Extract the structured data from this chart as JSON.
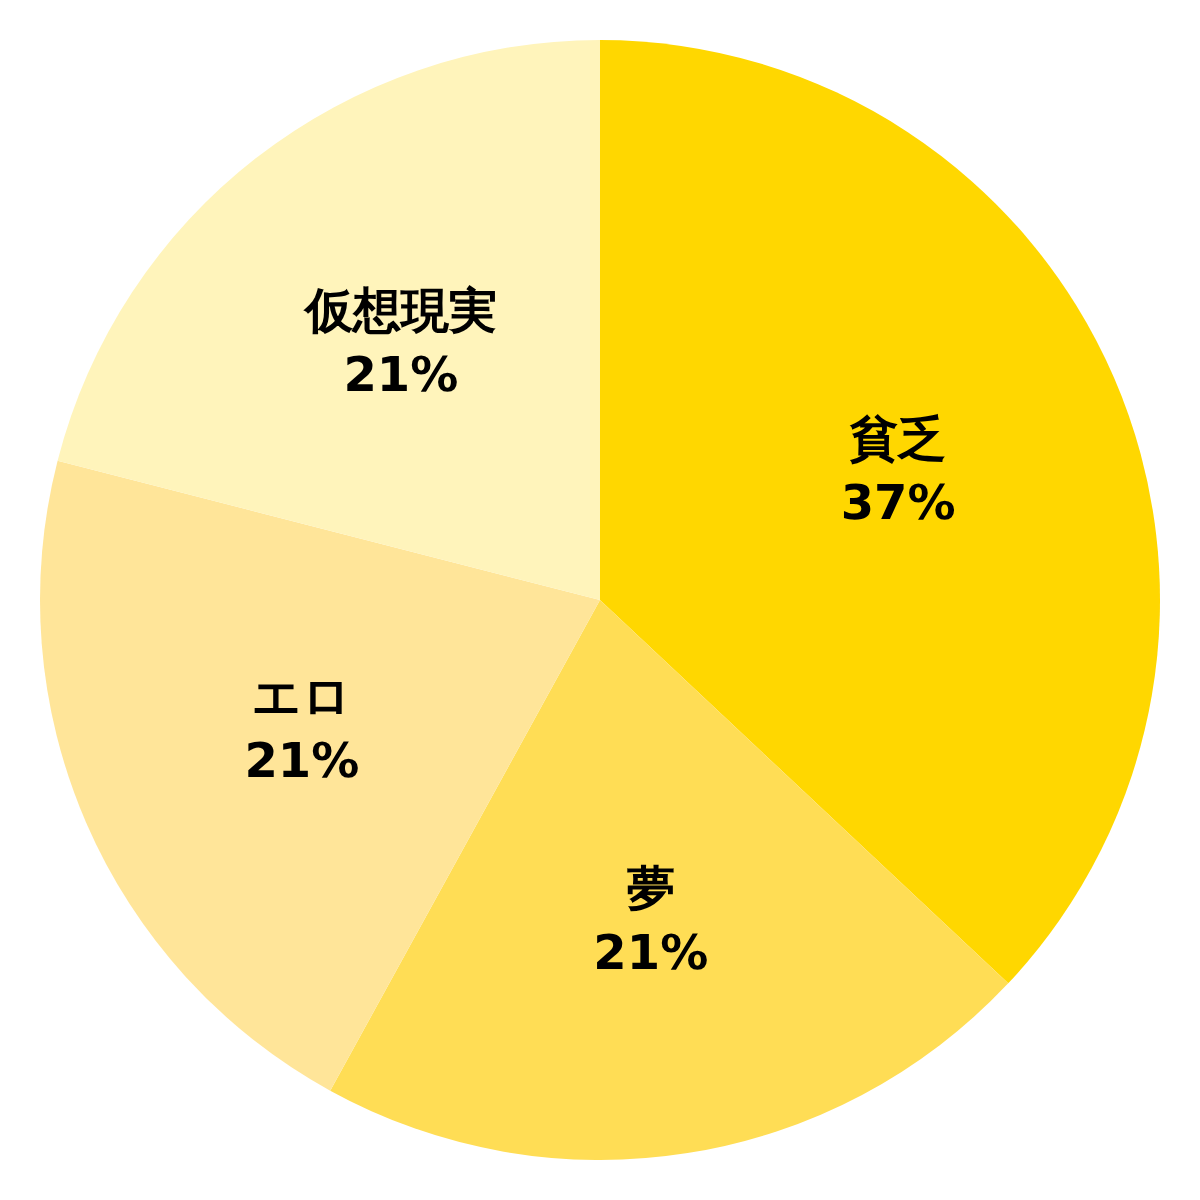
{
  "chart_data": {
    "type": "pie",
    "categories": [
      "貧乏",
      "夢",
      "エロ",
      "仮想現実"
    ],
    "values": [
      37,
      21,
      21,
      21
    ],
    "value_labels": [
      "37%",
      "21%",
      "21%",
      "21%"
    ],
    "colors": [
      "#ffd700",
      "#ffdd55",
      "#ffe599",
      "#fff4bb"
    ]
  }
}
